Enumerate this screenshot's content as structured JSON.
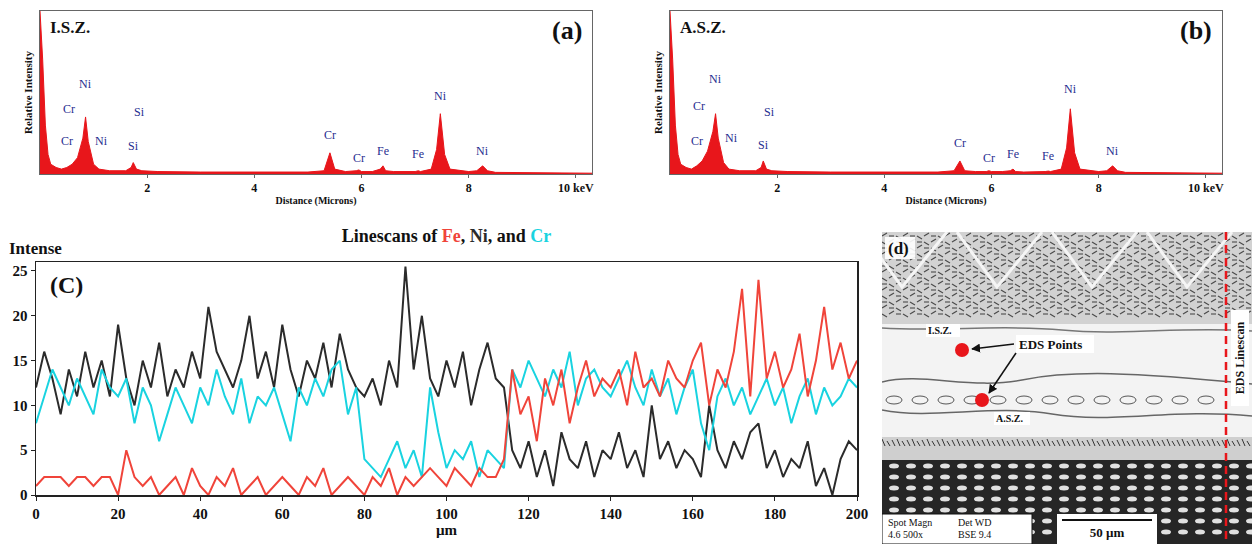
{
  "chart_data": [
    {
      "type": "area",
      "panel_label": "(a)",
      "title": "I.S.Z.",
      "x_label": "Distance (Microns)",
      "y_label": "Relative Intensity",
      "x": [
        0,
        0.05,
        0.1,
        0.15,
        0.2,
        0.3,
        0.4,
        0.5,
        0.6,
        0.7,
        0.8,
        0.85,
        0.9,
        1.0,
        1.1,
        1.3,
        1.6,
        1.7,
        1.74,
        1.8,
        1.9,
        2.2,
        3,
        4,
        5,
        5.3,
        5.41,
        5.5,
        5.7,
        5.9,
        5.95,
        6.0,
        6.2,
        6.35,
        6.4,
        6.45,
        6.6,
        7.0,
        7.06,
        7.1,
        7.3,
        7.4,
        7.47,
        7.55,
        7.65,
        8.0,
        8.15,
        8.26,
        8.35,
        8.5,
        9,
        10,
        10.3
      ],
      "values": [
        100,
        70,
        30,
        12,
        6,
        4,
        3,
        4,
        6,
        10,
        22,
        35,
        20,
        6,
        3,
        2,
        2,
        4,
        7,
        3,
        2,
        1.5,
        1.2,
        1,
        1.2,
        2,
        13,
        3,
        1.5,
        2,
        2.5,
        1.5,
        1.5,
        3,
        5,
        2,
        1.5,
        1.5,
        2,
        1.5,
        3,
        15,
        37,
        12,
        3,
        1.5,
        2,
        5,
        2,
        1,
        0.8,
        0.6,
        0.5
      ],
      "color": "#e8161b",
      "xlim": [
        0,
        10.3
      ],
      "xticks": [
        2,
        4,
        6,
        8,
        {
          "value": 10,
          "label": "10 keV"
        }
      ],
      "ylim": [
        0,
        100
      ],
      "yticks": [],
      "tick_labels": "x",
      "grid": false,
      "annotations": [
        {
          "text": "Ni",
          "x": 0.85,
          "y": 55
        },
        {
          "text": "Cr",
          "x": 0.55,
          "y": 40
        },
        {
          "text": "Cr",
          "x": 0.5,
          "y": 20
        },
        {
          "text": "Ni",
          "x": 1.15,
          "y": 20
        },
        {
          "text": "Si",
          "x": 1.85,
          "y": 38
        },
        {
          "text": "Si",
          "x": 1.74,
          "y": 17
        },
        {
          "text": "Cr",
          "x": 5.41,
          "y": 24
        },
        {
          "text": "Cr",
          "x": 5.95,
          "y": 10
        },
        {
          "text": "Fe",
          "x": 6.4,
          "y": 14
        },
        {
          "text": "Fe",
          "x": 7.06,
          "y": 12
        },
        {
          "text": "Ni",
          "x": 7.47,
          "y": 48
        },
        {
          "text": "Ni",
          "x": 8.26,
          "y": 14
        }
      ]
    },
    {
      "type": "area",
      "panel_label": "(b)",
      "title": "A.S.Z.",
      "x_label": "Distance (Microns)",
      "y_label": "Relative Intensity",
      "x": [
        0,
        0.05,
        0.1,
        0.15,
        0.2,
        0.3,
        0.4,
        0.5,
        0.6,
        0.7,
        0.8,
        0.85,
        0.9,
        1.0,
        1.1,
        1.3,
        1.6,
        1.7,
        1.74,
        1.8,
        1.9,
        2.2,
        3,
        4,
        5,
        5.3,
        5.41,
        5.5,
        5.7,
        5.9,
        5.95,
        6.0,
        6.2,
        6.35,
        6.4,
        6.45,
        6.6,
        7.0,
        7.06,
        7.1,
        7.3,
        7.4,
        7.47,
        7.55,
        7.65,
        8.0,
        8.15,
        8.26,
        8.35,
        8.5,
        9,
        10,
        10.3
      ],
      "values": [
        100,
        70,
        30,
        12,
        6,
        4,
        3,
        5,
        8,
        14,
        26,
        37,
        22,
        7,
        3,
        2,
        2,
        4,
        8,
        3,
        2,
        1.5,
        1.2,
        1,
        1.2,
        2,
        8,
        2,
        1.5,
        1.5,
        2,
        1.5,
        1.5,
        2,
        3,
        1.5,
        1.2,
        1.5,
        1.8,
        1.5,
        3,
        16,
        40,
        13,
        3,
        1.5,
        2,
        5,
        2,
        1,
        0.8,
        0.6,
        0.5
      ],
      "color": "#e8161b",
      "xlim": [
        0,
        10.3
      ],
      "xticks": [
        2,
        4,
        6,
        8,
        {
          "value": 10,
          "label": "10 keV"
        }
      ],
      "ylim": [
        0,
        100
      ],
      "yticks": [],
      "tick_labels": "x",
      "grid": false,
      "annotations": [
        {
          "text": "Ni",
          "x": 0.85,
          "y": 58
        },
        {
          "text": "Cr",
          "x": 0.55,
          "y": 42
        },
        {
          "text": "Cr",
          "x": 0.5,
          "y": 20
        },
        {
          "text": "Ni",
          "x": 1.15,
          "y": 22
        },
        {
          "text": "Si",
          "x": 1.85,
          "y": 38
        },
        {
          "text": "Si",
          "x": 1.74,
          "y": 18
        },
        {
          "text": "Cr",
          "x": 5.41,
          "y": 19
        },
        {
          "text": "Cr",
          "x": 5.95,
          "y": 10
        },
        {
          "text": "Fe",
          "x": 6.4,
          "y": 12
        },
        {
          "text": "Fe",
          "x": 7.06,
          "y": 11
        },
        {
          "text": "Ni",
          "x": 7.47,
          "y": 52
        },
        {
          "text": "Ni",
          "x": 8.26,
          "y": 14
        }
      ]
    },
    {
      "type": "line",
      "panel_label": "(C)",
      "title": "Linescans of Fe, Ni, and Cr",
      "x_label": "µm",
      "y_label": "Intense",
      "x": [
        0,
        2,
        4,
        6,
        8,
        10,
        12,
        14,
        16,
        18,
        20,
        22,
        24,
        26,
        28,
        30,
        32,
        34,
        36,
        38,
        40,
        42,
        44,
        46,
        48,
        50,
        52,
        54,
        56,
        58,
        60,
        62,
        64,
        66,
        68,
        70,
        72,
        74,
        76,
        78,
        80,
        82,
        84,
        86,
        88,
        90,
        92,
        94,
        96,
        98,
        100,
        102,
        104,
        106,
        108,
        110,
        112,
        114,
        116,
        118,
        120,
        122,
        124,
        126,
        128,
        130,
        132,
        134,
        136,
        138,
        140,
        142,
        144,
        146,
        148,
        150,
        152,
        154,
        156,
        158,
        160,
        162,
        164,
        166,
        168,
        170,
        172,
        174,
        176,
        178,
        180,
        182,
        184,
        186,
        188,
        190,
        192,
        194,
        196,
        198,
        200
      ],
      "series": [
        {
          "name": "Ni",
          "color": "#2b2b2b",
          "values": [
            12,
            16,
            13,
            9,
            14,
            11,
            16,
            12,
            15,
            11,
            19,
            13,
            10,
            15,
            12,
            17,
            11,
            14,
            12,
            16,
            13,
            21,
            16,
            14,
            12,
            15,
            20,
            13,
            16,
            12,
            19,
            14,
            11,
            15,
            13,
            17,
            12,
            18,
            14,
            12,
            11,
            13,
            10,
            15,
            12,
            25.5,
            14,
            20,
            13,
            11,
            15,
            12,
            16,
            10,
            14,
            17,
            13,
            12,
            5,
            3,
            6,
            2,
            5,
            1,
            7,
            4,
            3,
            6,
            2,
            5,
            4,
            7,
            3,
            5,
            2,
            10,
            4,
            6,
            3,
            5,
            4,
            2,
            10,
            5,
            3,
            6,
            4,
            7,
            8,
            3,
            5,
            2,
            4,
            3,
            6,
            1,
            3,
            0,
            4,
            6,
            5
          ]
        },
        {
          "name": "Cr",
          "color": "#19d3e0",
          "values": [
            8,
            11,
            14,
            12,
            10,
            13,
            11,
            9,
            14,
            12,
            11,
            13,
            8,
            12,
            10,
            6,
            9,
            12,
            10,
            8,
            12,
            10,
            14,
            11,
            9,
            13,
            8,
            11,
            10,
            12,
            9,
            6,
            12,
            10,
            13,
            11,
            14,
            15,
            9,
            12,
            4,
            3,
            2,
            4,
            6,
            3,
            5,
            2,
            12,
            7,
            3,
            5,
            4,
            6,
            2,
            5,
            4,
            3,
            14,
            12,
            15,
            13,
            11,
            14,
            12,
            16,
            10,
            13,
            14,
            12,
            11,
            13,
            15,
            12,
            10,
            14,
            11,
            13,
            9,
            12,
            14,
            8,
            5,
            11,
            13,
            10,
            12,
            9,
            11,
            13,
            10,
            12,
            8,
            11,
            13,
            9,
            12,
            10,
            11,
            13,
            12
          ]
        },
        {
          "name": "Fe",
          "color": "#f0443a",
          "values": [
            1,
            2,
            2,
            2,
            1,
            2,
            2,
            1,
            2,
            2,
            0,
            5,
            2,
            1,
            2,
            0,
            1,
            2,
            0,
            3,
            1,
            0,
            2,
            1,
            3,
            0,
            1,
            2,
            0,
            1,
            2,
            1,
            0,
            2,
            1,
            3,
            0,
            1,
            2,
            1,
            0,
            2,
            1,
            3,
            0,
            2,
            1,
            2,
            3,
            2,
            1,
            3,
            2,
            1,
            3,
            2,
            2,
            4,
            14,
            9,
            11,
            6,
            13,
            10,
            14,
            8,
            12,
            15,
            11,
            13,
            12,
            14,
            10,
            16,
            12,
            13,
            11,
            15,
            13,
            12,
            15,
            17,
            10,
            14,
            12,
            16,
            23,
            11,
            24,
            13,
            16,
            12,
            14,
            18,
            11,
            15,
            21,
            14,
            17,
            13,
            15
          ]
        }
      ],
      "xlim": [
        0,
        200
      ],
      "xticks": [
        0,
        20,
        40,
        60,
        80,
        100,
        120,
        140,
        160,
        180,
        200
      ],
      "ylim": [
        0,
        26
      ],
      "yticks": [
        0,
        5,
        10,
        15,
        20,
        25
      ],
      "grid": false
    }
  ],
  "micrograph": {
    "panel_label": "(d)",
    "points_label": "EDS Points",
    "points": [
      "I.S.Z.",
      "A.S.Z."
    ],
    "linescan_label": "EDS Linescan",
    "info": [
      [
        "Spot Magn",
        "4.6 500x"
      ],
      [
        "Det WD",
        "BSE 9.4"
      ]
    ],
    "scale_bar": "50 µm"
  }
}
